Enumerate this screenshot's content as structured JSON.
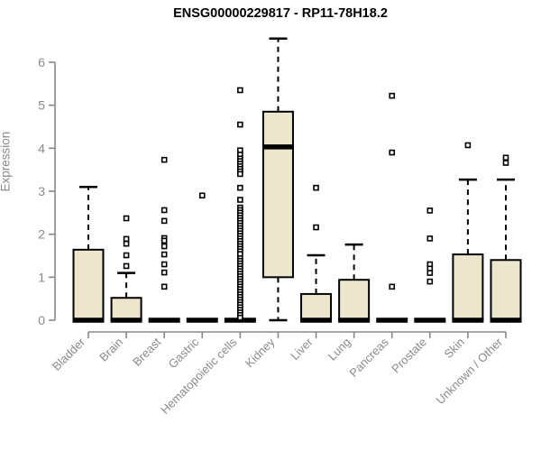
{
  "chart_data": {
    "type": "boxplot",
    "title": "ENSG00000229817 - RP11-78H18.2",
    "ylabel": "Expression",
    "xlabel": "",
    "ylim": [
      0,
      6.6
    ],
    "yticks": [
      0,
      1,
      2,
      3,
      4,
      5,
      6
    ],
    "grid": false,
    "legend": "none",
    "colors": {
      "box_fill": "#ECE7CC",
      "box_stroke": "#000000",
      "axis": "#878787",
      "labels": "#8A8A8A",
      "title": "#000000",
      "background": "#FFFFFF"
    },
    "categories": [
      "Bladder",
      "Brain",
      "Breast",
      "Gastric",
      "Hematopoietic cells",
      "Kidney",
      "Liver",
      "Lung",
      "Pancreas",
      "Prostate",
      "Skin",
      "Unknown / Other"
    ],
    "series": [
      {
        "name": "Bladder",
        "low": 0,
        "q1": 0,
        "median": 0,
        "q3": 1.64,
        "high": 3.1,
        "outliers": []
      },
      {
        "name": "Brain",
        "low": 0,
        "q1": 0,
        "median": 0,
        "q3": 0.52,
        "high": 1.1,
        "outliers": [
          2.37,
          1.89,
          1.78,
          1.51,
          1.26
        ]
      },
      {
        "name": "Breast",
        "low": 0,
        "q1": 0,
        "median": 0,
        "q3": 0,
        "high": 0,
        "outliers": [
          3.73,
          2.56,
          2.31,
          1.91,
          1.85,
          1.72,
          1.53,
          1.3,
          1.11,
          0.78
        ]
      },
      {
        "name": "Gastric",
        "low": 0,
        "q1": 0,
        "median": 0,
        "q3": 0,
        "high": 0,
        "outliers": [
          2.9
        ]
      },
      {
        "name": "Hematopoietic cells",
        "low": 0,
        "q1": 0,
        "median": 0,
        "q3": 0,
        "high": 0,
        "outliers": [
          5.35,
          4.55,
          3.95,
          3.85,
          3.76,
          3.7,
          3.64,
          3.58,
          3.52,
          3.46,
          3.4,
          3.08,
          2.8,
          2.62,
          2.56,
          2.5,
          2.44,
          2.38,
          2.32,
          2.26,
          2.2,
          2.14,
          2.08,
          2.02,
          1.96,
          1.9,
          1.84,
          1.78,
          1.72,
          1.66,
          1.6,
          1.54,
          1.44,
          1.38,
          1.32,
          1.26,
          1.2,
          1.14,
          1.08,
          1.02,
          0.96,
          0.9,
          0.84,
          0.78,
          0.72,
          0.66,
          0.6,
          0.54,
          0.48,
          0.42,
          0.36,
          0.3,
          0.24,
          0.18,
          0.12,
          0.06
        ]
      },
      {
        "name": "Kidney",
        "low": 0,
        "q1": 1.0,
        "median": 4.03,
        "q3": 4.85,
        "high": 6.55,
        "outliers": []
      },
      {
        "name": "Liver",
        "low": 0,
        "q1": 0,
        "median": 0,
        "q3": 0.61,
        "high": 1.51,
        "outliers": [
          3.08,
          2.16
        ]
      },
      {
        "name": "Lung",
        "low": 0,
        "q1": 0,
        "median": 0,
        "q3": 0.94,
        "high": 1.76,
        "outliers": []
      },
      {
        "name": "Pancreas",
        "low": 0,
        "q1": 0,
        "median": 0,
        "q3": 0,
        "high": 0,
        "outliers": [
          5.22,
          3.9,
          0.78
        ]
      },
      {
        "name": "Prostate",
        "low": 0,
        "q1": 0,
        "median": 0,
        "q3": 0,
        "high": 0,
        "outliers": [
          2.55,
          1.9,
          1.3,
          1.2,
          1.1,
          0.9
        ]
      },
      {
        "name": "Skin",
        "low": 0,
        "q1": 0,
        "median": 0,
        "q3": 1.53,
        "high": 3.27,
        "outliers": [
          4.07
        ]
      },
      {
        "name": "Unknown / Other",
        "low": 0,
        "q1": 0,
        "median": 0,
        "q3": 1.4,
        "high": 3.27,
        "outliers": [
          3.78,
          3.66
        ]
      }
    ]
  }
}
